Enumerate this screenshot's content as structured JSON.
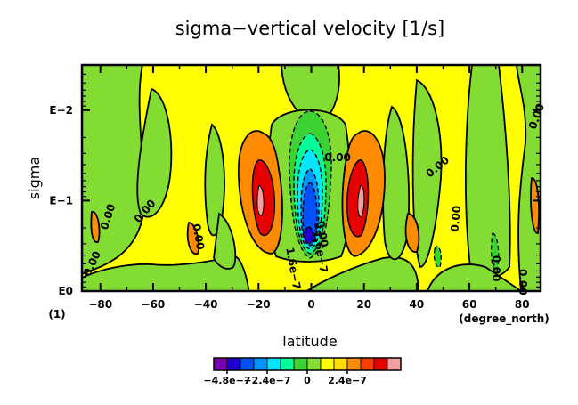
{
  "chart_data": {
    "type": "heatmap",
    "subtype": "filled-contour",
    "title": "sigma−vertical velocity [1/s]",
    "xlabel": "latitude",
    "ylabel": "sigma",
    "x_units": "(degree_north)",
    "y_units": "(1)",
    "x_range": [
      -87,
      87
    ],
    "y_range_log10": [
      0,
      -2.5
    ],
    "x_ticks": [
      {
        "value": -80,
        "label": "−80"
      },
      {
        "value": -60,
        "label": "−60"
      },
      {
        "value": -40,
        "label": "−40"
      },
      {
        "value": -20,
        "label": "−20"
      },
      {
        "value": 0,
        "label": "0"
      },
      {
        "value": 20,
        "label": "20"
      },
      {
        "value": 40,
        "label": "40"
      },
      {
        "value": 60,
        "label": "60"
      },
      {
        "value": 80,
        "label": "80"
      }
    ],
    "y_ticks": [
      {
        "log10": 0,
        "label": "E0"
      },
      {
        "log10": -1,
        "label": "E−1"
      },
      {
        "log10": -2,
        "label": "E−2"
      }
    ],
    "contour_interval": 8e-08,
    "colorbar": {
      "colors": [
        "#7a00b4",
        "#1e00d2",
        "#0050ff",
        "#0096ff",
        "#00e6ff",
        "#00ff96",
        "#3cd232",
        "#82dc32",
        "#ffff00",
        "#ffdc00",
        "#ff8c00",
        "#ff3c00",
        "#e60000",
        "#f0a0a0"
      ],
      "tick_labels": [
        {
          "index": 1,
          "label": "−4.8e−7"
        },
        {
          "index": 4,
          "label": "−2.4e−7"
        },
        {
          "index": 7,
          "label": "0"
        },
        {
          "index": 10,
          "label": "2.4e−7"
        }
      ]
    },
    "contour_labels": [
      {
        "text": "0.00",
        "lat": -77,
        "log10": -0.82,
        "rotate": -72
      },
      {
        "text": "0.00",
        "lat": -63,
        "log10": -0.88,
        "rotate": -50
      },
      {
        "text": "0.00",
        "lat": -43,
        "log10": -0.6,
        "rotate": 80
      },
      {
        "text": "0.00",
        "lat": -83,
        "log10": -0.3,
        "rotate": -65
      },
      {
        "text": "0.00",
        "lat": 4,
        "log10": -0.63,
        "rotate": 80
      },
      {
        "text": "−1.6e−7",
        "lat": 3,
        "log10": -0.48,
        "rotate": 80
      },
      {
        "text": "1.6e−7",
        "lat": -7,
        "log10": -0.25,
        "rotate": 80
      },
      {
        "text": "0.00",
        "lat": 55,
        "log10": -0.8,
        "rotate": -85
      },
      {
        "text": "0.00",
        "lat": 70,
        "log10": -0.25,
        "rotate": 90
      },
      {
        "text": "0.00",
        "lat": 80,
        "log10": -0.1,
        "rotate": 90
      },
      {
        "text": "0.00",
        "lat": 48,
        "log10": -1.37,
        "rotate": -40
      },
      {
        "text": "0.00",
        "lat": 10,
        "log10": -1.47,
        "rotate": 0
      },
      {
        "text": "0.00",
        "lat": 91,
        "log10": -1.93,
        "rotate": -70
      }
    ]
  }
}
